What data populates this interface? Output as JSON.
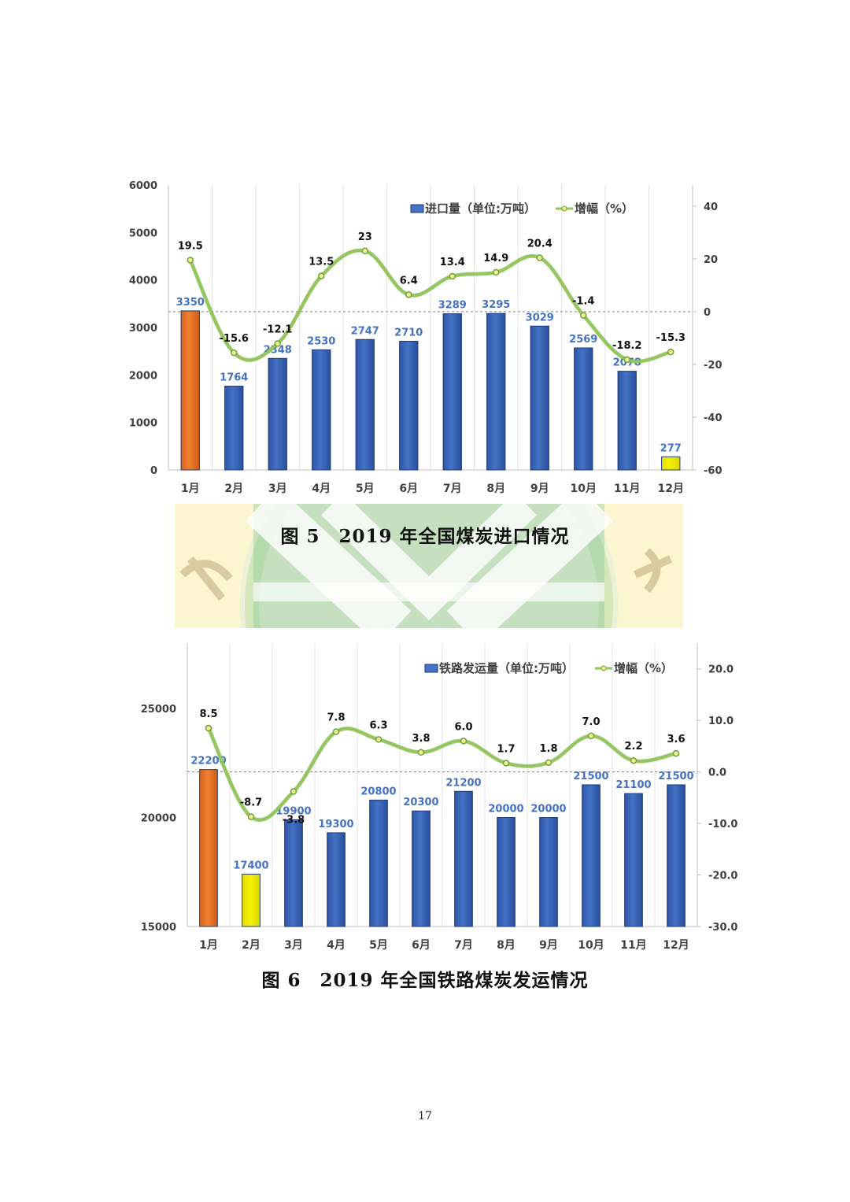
{
  "charts": [
    {
      "caption": "图 5　2019 年全国煤炭进口情况",
      "legend": {
        "bar": "进口量（单位:万吨）",
        "line": "增幅（%）"
      }
    },
    {
      "caption": "图 6　2019 年全国铁路煤炭发运情况",
      "legend": {
        "bar": "铁路发运量（单位:万吨）",
        "line": "增幅（%）"
      }
    }
  ],
  "page_number": "17",
  "colors": {
    "bar": "#4472C4",
    "highlight_max": "#F08030",
    "highlight_min": "#F5F000",
    "line": "#92C85A",
    "value_label": "#4472C4",
    "growth_label": "#111111"
  },
  "chart_data": [
    {
      "type": "bar",
      "categories": [
        "1月",
        "2月",
        "3月",
        "4月",
        "5月",
        "6月",
        "7月",
        "8月",
        "9月",
        "10月",
        "11月",
        "12月"
      ],
      "series": [
        {
          "name": "进口量（单位:万吨）",
          "axis": "left",
          "values": [
            3350,
            1764,
            2348,
            2530,
            2747,
            2710,
            3289,
            3295,
            3029,
            2569,
            2078,
            277
          ],
          "value_labels": [
            "3350",
            "1764",
            "2348",
            "2530",
            "2747",
            "2710",
            "3289",
            "3295",
            "3029",
            "2569",
            "2078",
            "277"
          ]
        },
        {
          "name": "增幅（%）",
          "type": "line",
          "axis": "right",
          "values": [
            19.5,
            -15.6,
            -12.1,
            13.5,
            23,
            6.4,
            13.4,
            14.9,
            20.4,
            -1.4,
            -18.2,
            -15.3
          ],
          "value_labels": [
            "19.5",
            "-15.6",
            "-12.1",
            "13.5",
            "23",
            "6.4",
            "13.4",
            "14.9",
            "20.4",
            "-1.4",
            "-18.2",
            "-15.3"
          ]
        }
      ],
      "bar_colors": [
        "orange",
        "blue",
        "blue",
        "blue",
        "blue",
        "blue",
        "blue",
        "blue",
        "blue",
        "blue",
        "blue",
        "yellow"
      ],
      "ylim": [
        0,
        6000
      ],
      "y_ticks": [
        "6000",
        "5000",
        "4000",
        "3000",
        "2000",
        "1000",
        "0"
      ],
      "y2lim": [
        -60,
        48
      ],
      "y2_ticks": [
        "40",
        "20",
        "0",
        "-20",
        "-40",
        "-60"
      ],
      "y2_tick_values": [
        40,
        20,
        0,
        -20,
        -40,
        -60
      ],
      "reference_line_y2": 0,
      "grid": "vertical",
      "legend_position": "top-right"
    },
    {
      "type": "bar",
      "categories": [
        "1月",
        "2月",
        "3月",
        "4月",
        "5月",
        "6月",
        "7月",
        "8月",
        "9月",
        "10月",
        "11月",
        "12月"
      ],
      "series": [
        {
          "name": "铁路发运量（单位:万吨）",
          "axis": "left",
          "values": [
            22200,
            17400,
            19900,
            19300,
            20800,
            20300,
            21200,
            20000,
            20000,
            21500,
            21100,
            21500
          ],
          "value_labels": [
            "22200",
            "17400",
            "19900",
            "19300",
            "20800",
            "20300",
            "21200",
            "20000",
            "20000",
            "21500",
            "21100",
            "21500"
          ]
        },
        {
          "name": "增幅（%）",
          "type": "line",
          "axis": "right",
          "values": [
            8.5,
            -8.7,
            -3.8,
            7.8,
            6.3,
            3.8,
            6.0,
            1.7,
            1.8,
            7.0,
            2.2,
            3.6
          ],
          "value_labels": [
            "8.5",
            "-8.7",
            "-3.8",
            "7.8",
            "6.3",
            "3.8",
            "6.0",
            "1.7",
            "1.8",
            "7.0",
            "2.2",
            "3.6"
          ]
        }
      ],
      "bar_colors": [
        "orange",
        "yellow",
        "blue",
        "blue",
        "blue",
        "blue",
        "blue",
        "blue",
        "blue",
        "blue",
        "blue",
        "blue"
      ],
      "ylim": [
        15000,
        28000
      ],
      "y_ticks": [
        "25000",
        "20000",
        "15000"
      ],
      "y_tick_values": [
        25000,
        20000,
        15000
      ],
      "y2lim": [
        -30,
        25
      ],
      "y2_ticks": [
        "20.0",
        "10.0",
        "0.0",
        "-10.0",
        "-20.0",
        "-30.0"
      ],
      "y2_tick_values": [
        20,
        10,
        0,
        -10,
        -20,
        -30
      ],
      "reference_line_y2": 0,
      "grid": "vertical",
      "legend_position": "top-right"
    }
  ]
}
